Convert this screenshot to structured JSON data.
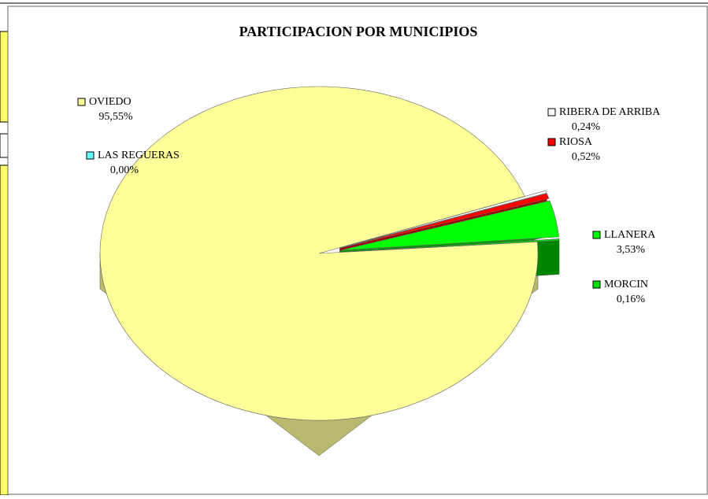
{
  "chart_data": {
    "type": "pie",
    "title": "PARTICIPACION POR MUNICIPIOS",
    "categories": [
      "OVIEDO",
      "LAS REGUERAS",
      "RIBERA DE ARRIBA",
      "RIOSA",
      "LLANERA",
      "MORCIN"
    ],
    "values": [
      95.55,
      0.0,
      0.24,
      0.52,
      3.53,
      0.16
    ],
    "value_labels": [
      "95,55%",
      "0,00%",
      "0,24%",
      "0,52%",
      "3,53%",
      "0,16%"
    ],
    "colors": [
      "#ffff99",
      "#66ffff",
      "#ffffff",
      "#ff0000",
      "#00ff00",
      "#00dd00"
    ]
  }
}
